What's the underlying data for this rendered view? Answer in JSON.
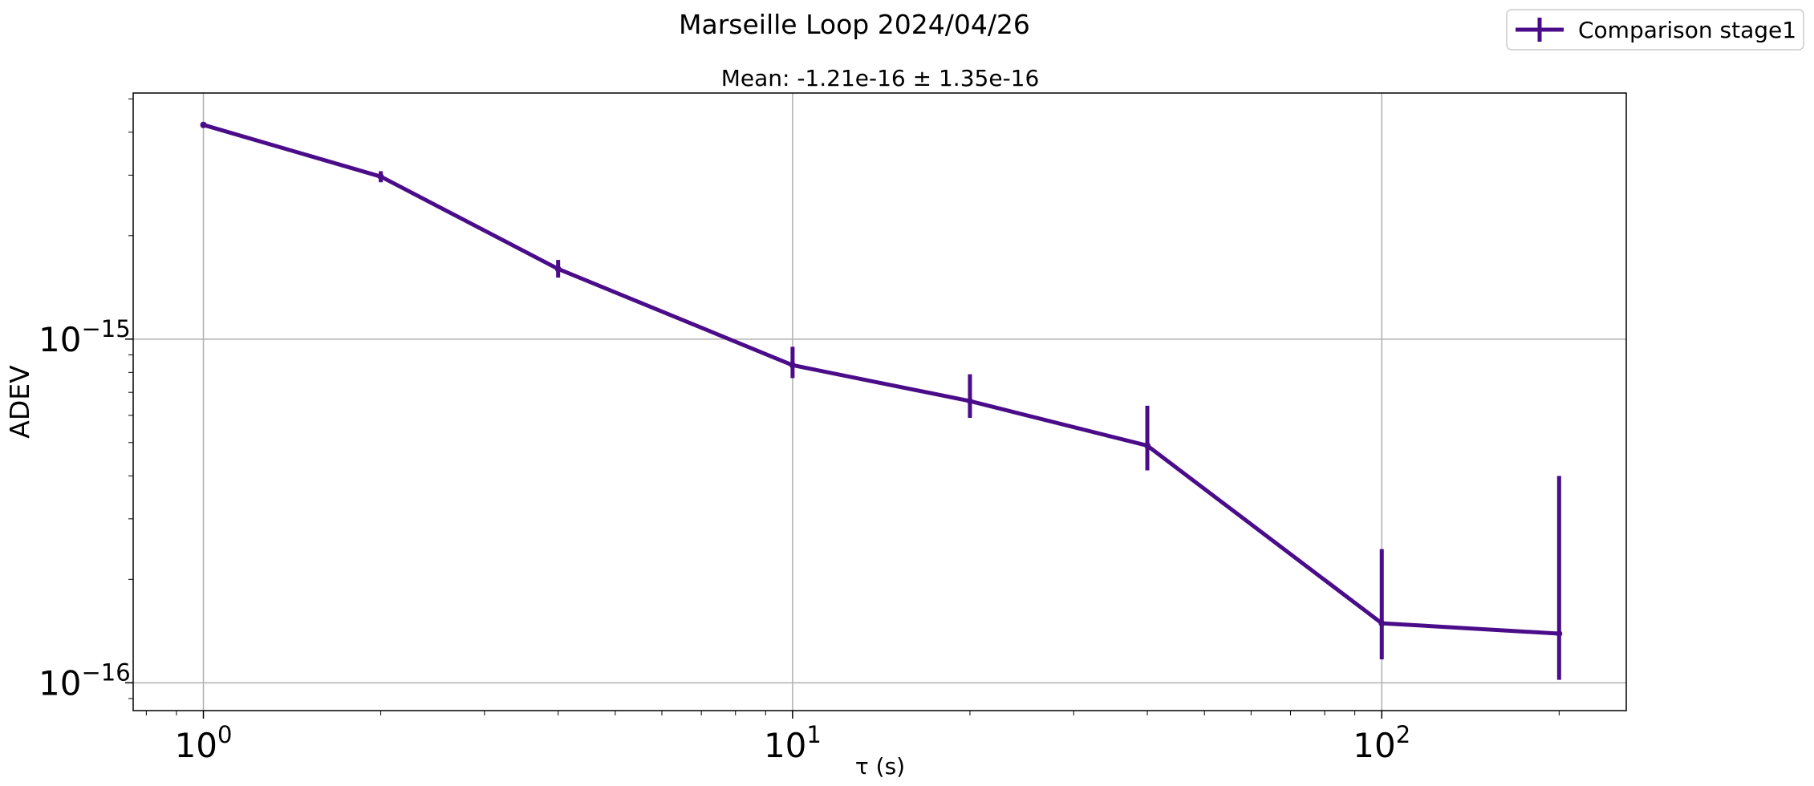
{
  "figure_title": "Marseille Loop 2024/04/26",
  "chart_data": {
    "type": "line",
    "title": "Mean: -1.21e-16 ± 1.35e-16",
    "xlabel": "τ (s)",
    "ylabel": "ADEV",
    "x_scale": "log",
    "y_scale": "log",
    "xlim": [
      0.76,
      260
    ],
    "ylim": [
      8.3e-17,
      5.2e-15
    ],
    "x_ticks": [
      {
        "value": 1,
        "base": "10",
        "exp": "0"
      },
      {
        "value": 10,
        "base": "10",
        "exp": "1"
      },
      {
        "value": 100,
        "base": "10",
        "exp": "2"
      }
    ],
    "y_ticks": [
      {
        "value": 1e-16,
        "base": "10",
        "exp": "−16"
      },
      {
        "value": 1e-15,
        "base": "10",
        "exp": "−15"
      }
    ],
    "grid": true,
    "legend_position": "top-right",
    "series": [
      {
        "name": "Comparison stage1",
        "color": "#4b0c8a",
        "x": [
          1,
          2,
          4,
          10,
          20,
          40,
          100,
          200
        ],
        "y": [
          4.2e-15,
          2.97e-15,
          1.6e-15,
          8.4e-16,
          6.6e-16,
          4.9e-16,
          1.49e-16,
          1.39e-16
        ],
        "err_low": [
          4.12e-15,
          2.86e-15,
          1.51e-15,
          7.7e-16,
          5.9e-16,
          4.15e-16,
          1.17e-16,
          1.02e-16
        ],
        "err_high": [
          4.28e-15,
          3.08e-15,
          1.7e-15,
          9.5e-16,
          7.9e-16,
          6.4e-16,
          2.45e-16,
          4e-16
        ]
      }
    ]
  }
}
